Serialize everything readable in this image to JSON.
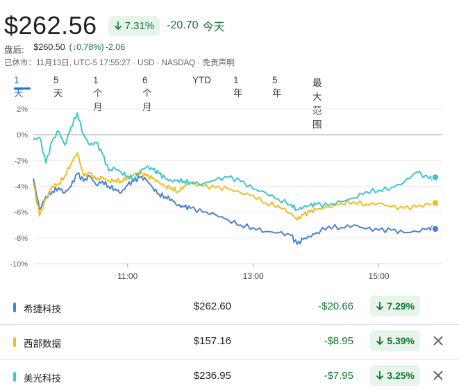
{
  "quote": {
    "price": "$262.56",
    "pct_change": "7.31%",
    "abs_change": "-20.70",
    "period": "今天"
  },
  "after_hours": {
    "label": "盘后:",
    "price": "$260.50",
    "pct_change": "(↓0.78%)",
    "abs_change": "-2.06"
  },
  "market_status": "已休市：11月13日, UTC-5 17:55:27 · USD · NASDAQ · 免责声明",
  "tabs": [
    "1天",
    "5 天",
    "1 个月",
    "6 个月",
    "YTD",
    "1 年",
    "5 年",
    "最大范围"
  ],
  "active_tab": 0,
  "colors": {
    "up_green": "#137333",
    "badge_bg": "#e6f4ea",
    "accent_blue": "#1a73e8"
  },
  "chart_data": {
    "type": "line",
    "y_ticks": [
      "2%",
      "0%",
      "-2%",
      "-4%",
      "-6%",
      "-8%",
      "-10%"
    ],
    "y_tick_values": [
      2,
      0,
      -2,
      -4,
      -6,
      -8,
      -10
    ],
    "ylim": [
      -10,
      2
    ],
    "x_ticks": [
      "11:00",
      "13:00",
      "15:00"
    ],
    "x_tick_values": [
      11.0,
      13.0,
      15.0
    ],
    "xlim": [
      9.5,
      16.0
    ],
    "baseline": 0,
    "grid": "horizontal",
    "series": [
      {
        "name": "希捷科技",
        "color": "#4a80d9",
        "x": [
          9.5,
          9.6,
          9.7,
          9.8,
          9.9,
          10.0,
          10.1,
          10.2,
          10.3,
          10.4,
          10.5,
          10.6,
          10.7,
          10.8,
          10.9,
          11.0,
          11.1,
          11.2,
          11.3,
          11.4,
          11.5,
          11.6,
          11.7,
          11.8,
          11.9,
          12.0,
          12.2,
          12.4,
          12.6,
          12.8,
          13.0,
          13.2,
          13.4,
          13.6,
          13.7,
          13.8,
          13.9,
          14.0,
          14.2,
          14.4,
          14.6,
          14.8,
          15.0,
          15.2,
          15.4,
          15.6,
          15.8,
          15.9
        ],
        "y": [
          -3.4,
          -5.8,
          -4.8,
          -4.4,
          -4.1,
          -4.5,
          -4.0,
          -3.0,
          -3.6,
          -3.2,
          -3.9,
          -3.6,
          -4.0,
          -4.2,
          -4.5,
          -3.9,
          -3.6,
          -3.3,
          -3.5,
          -4.1,
          -4.6,
          -4.8,
          -5.0,
          -5.5,
          -5.6,
          -5.7,
          -6.0,
          -6.2,
          -6.6,
          -7.0,
          -7.2,
          -7.5,
          -7.6,
          -7.8,
          -8.5,
          -8.1,
          -7.9,
          -7.6,
          -7.1,
          -7.2,
          -7.0,
          -7.3,
          -7.4,
          -7.4,
          -7.6,
          -7.5,
          -7.2,
          -7.3
        ]
      },
      {
        "name": "西部数据",
        "color": "#f2be22",
        "x": [
          9.5,
          9.6,
          9.7,
          9.8,
          9.9,
          10.0,
          10.1,
          10.2,
          10.3,
          10.4,
          10.5,
          10.6,
          10.7,
          10.8,
          10.9,
          11.0,
          11.1,
          11.2,
          11.3,
          11.4,
          11.5,
          11.6,
          11.7,
          11.8,
          11.9,
          12.0,
          12.2,
          12.4,
          12.6,
          12.8,
          13.0,
          13.2,
          13.4,
          13.6,
          13.7,
          13.8,
          13.9,
          14.0,
          14.2,
          14.4,
          14.6,
          14.8,
          15.0,
          15.2,
          15.4,
          15.6,
          15.8,
          15.9
        ],
        "y": [
          -3.8,
          -6.3,
          -5.0,
          -4.0,
          -3.8,
          -3.2,
          -2.2,
          -1.4,
          -3.2,
          -3.0,
          -3.5,
          -3.3,
          -3.6,
          -3.5,
          -3.6,
          -3.3,
          -3.1,
          -3.0,
          -3.2,
          -3.4,
          -3.7,
          -4.0,
          -4.1,
          -4.4,
          -4.0,
          -3.7,
          -4.0,
          -4.1,
          -4.2,
          -4.5,
          -4.7,
          -5.3,
          -5.5,
          -6.1,
          -6.6,
          -6.2,
          -6.0,
          -5.8,
          -5.6,
          -5.3,
          -5.2,
          -5.4,
          -5.3,
          -5.6,
          -5.7,
          -5.6,
          -5.4,
          -5.3
        ]
      },
      {
        "name": "美光科技",
        "color": "#3ec6c9",
        "x": [
          9.5,
          9.6,
          9.7,
          9.8,
          9.9,
          10.0,
          10.1,
          10.2,
          10.3,
          10.4,
          10.5,
          10.6,
          10.7,
          10.8,
          10.9,
          11.0,
          11.1,
          11.2,
          11.3,
          11.4,
          11.5,
          11.6,
          11.7,
          11.8,
          11.9,
          12.0,
          12.2,
          12.4,
          12.6,
          12.8,
          13.0,
          13.2,
          13.4,
          13.6,
          13.7,
          13.8,
          13.9,
          14.0,
          14.2,
          14.4,
          14.6,
          14.8,
          15.0,
          15.2,
          15.4,
          15.6,
          15.8,
          15.9
        ],
        "y": [
          -0.4,
          -0.2,
          -2.2,
          -0.5,
          0.3,
          -0.8,
          0.6,
          1.7,
          0.0,
          -0.8,
          -0.6,
          -1.5,
          -2.8,
          -2.6,
          -2.9,
          -3.2,
          -3.4,
          -2.8,
          -2.5,
          -2.7,
          -3.0,
          -3.4,
          -3.6,
          -3.5,
          -3.6,
          -3.7,
          -3.8,
          -3.5,
          -3.3,
          -3.6,
          -4.2,
          -4.5,
          -5.0,
          -5.4,
          -5.8,
          -5.6,
          -5.5,
          -5.4,
          -5.5,
          -5.2,
          -4.9,
          -4.4,
          -4.3,
          -4.1,
          -3.7,
          -2.9,
          -3.4,
          -3.3
        ]
      }
    ]
  },
  "stocks": [
    {
      "name": "希捷科技",
      "price": "$262.60",
      "abs_change": "-$20.66",
      "pct_change": "7.29%",
      "color": "#4a80d9",
      "removable": false
    },
    {
      "name": "西部数据",
      "price": "$157.16",
      "abs_change": "-$8.95",
      "pct_change": "5.39%",
      "color": "#f2be22",
      "removable": true
    },
    {
      "name": "美光科技",
      "price": "$236.95",
      "abs_change": "-$7.95",
      "pct_change": "3.25%",
      "color": "#3ec6c9",
      "removable": true
    }
  ]
}
